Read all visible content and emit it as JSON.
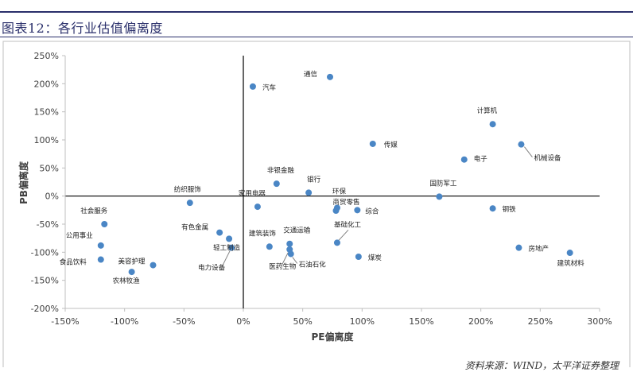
{
  "figure": {
    "title": "图表12：各行业估值偏离度",
    "source": "资料来源：WIND，太平洋证券整理"
  },
  "colors": {
    "point": "#4a86c5",
    "axis": "#000000",
    "border": "#bfbfbf",
    "title": "#2a2f6b"
  },
  "chart_data": {
    "type": "scatter",
    "xlabel": "PE偏离度",
    "ylabel": "PB偏离度",
    "xlim": [
      -150,
      300
    ],
    "ylim": [
      -200,
      250
    ],
    "x_ticks": [
      "-150%",
      "-100%",
      "-50%",
      "0%",
      "50%",
      "100%",
      "150%",
      "200%",
      "250%",
      "300%"
    ],
    "y_ticks": [
      "250%",
      "200%",
      "150%",
      "100%",
      "50%",
      "0%",
      "-50%",
      "-100%",
      "-150%",
      "-200%"
    ],
    "grid": false,
    "points": [
      {
        "label": "汽车",
        "x": 8,
        "y": 195
      },
      {
        "label": "通信",
        "x": 73,
        "y": 212
      },
      {
        "label": "计算机",
        "x": 210,
        "y": 128
      },
      {
        "label": "传媒",
        "x": 109,
        "y": 93
      },
      {
        "label": "机械设备",
        "x": 234,
        "y": 92
      },
      {
        "label": "电子",
        "x": 186,
        "y": 65
      },
      {
        "label": "非银金融",
        "x": 28,
        "y": 22
      },
      {
        "label": "银行",
        "x": 55,
        "y": 6
      },
      {
        "label": "纺织服饰",
        "x": -45,
        "y": -12
      },
      {
        "label": "家用电器",
        "x": 12,
        "y": -19
      },
      {
        "label": "国防军工",
        "x": 165,
        "y": -1
      },
      {
        "label": "环保",
        "x": 79,
        "y": -21
      },
      {
        "label": "商贸零售",
        "x": 78,
        "y": -26
      },
      {
        "label": "综合",
        "x": 96,
        "y": -25
      },
      {
        "label": "钢铁",
        "x": 210,
        "y": -22
      },
      {
        "label": "社会服务",
        "x": -117,
        "y": -50
      },
      {
        "label": "有色金属",
        "x": -20,
        "y": -65
      },
      {
        "label": "轻工制造",
        "x": -12,
        "y": -76
      },
      {
        "label": "电力设备",
        "x": -10,
        "y": -92
      },
      {
        "label": "建筑装饰",
        "x": 22,
        "y": -90
      },
      {
        "label": "交通运输",
        "x": 39,
        "y": -85
      },
      {
        "label": "医药生物",
        "x": 39,
        "y": -95
      },
      {
        "label": "石油石化",
        "x": 40,
        "y": -103
      },
      {
        "label": "基础化工",
        "x": 79,
        "y": -83
      },
      {
        "label": "煤炭",
        "x": 97,
        "y": -108
      },
      {
        "label": "公用事业",
        "x": -120,
        "y": -88
      },
      {
        "label": "食品饮料",
        "x": -120,
        "y": -113
      },
      {
        "label": "美容护理",
        "x": -76,
        "y": -123
      },
      {
        "label": "农林牧渔",
        "x": -94,
        "y": -135
      },
      {
        "label": "房地产",
        "x": 232,
        "y": -92
      },
      {
        "label": "建筑材料",
        "x": 275,
        "y": -101
      }
    ]
  }
}
